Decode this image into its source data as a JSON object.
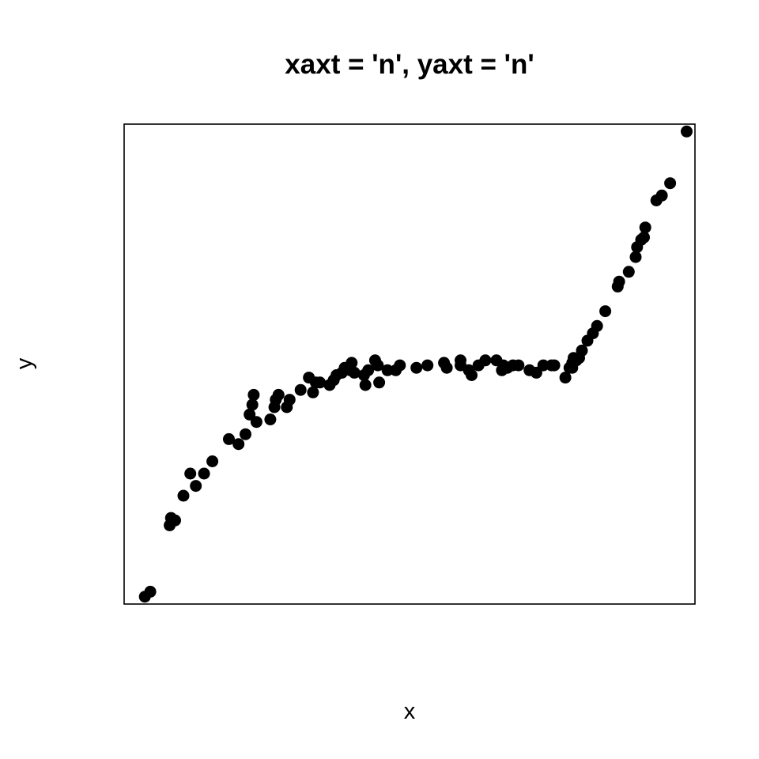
{
  "chart_data": {
    "type": "scatter",
    "title": "xaxt = 'n', yaxt = 'n'",
    "xlabel": "x",
    "ylabel": "y",
    "xlim": [
      0.04,
      2.11
    ],
    "ylim": [
      -0.33,
      1.62
    ],
    "x_ticks_shown": false,
    "y_ticks_shown": false,
    "grid": false,
    "point_color": "#000000",
    "series": [
      {
        "x": [
          0.115,
          0.135,
          0.205,
          0.21,
          0.225,
          0.255,
          0.28,
          0.3,
          0.33,
          0.36,
          0.42,
          0.455,
          0.48,
          0.495,
          0.505,
          0.51,
          0.52,
          0.57,
          0.585,
          0.59,
          0.6,
          0.63,
          0.64,
          0.68,
          0.71,
          0.725,
          0.735,
          0.75,
          0.785,
          0.8,
          0.81,
          0.83,
          0.84,
          0.86,
          0.865,
          0.875,
          0.91,
          0.915,
          0.925,
          0.95,
          0.96,
          0.965,
          0.995,
          1.025,
          1.04,
          1.1,
          1.14,
          1.2,
          1.21,
          1.26,
          1.26,
          1.29,
          1.3,
          1.325,
          1.35,
          1.39,
          1.41,
          1.415,
          1.43,
          1.45,
          1.47,
          1.51,
          1.535,
          1.56,
          1.59,
          1.6,
          1.64,
          1.655,
          1.665,
          1.665,
          1.67,
          1.68,
          1.69,
          1.7,
          1.72,
          1.74,
          1.755,
          1.785,
          1.83,
          1.835,
          1.87,
          1.895,
          1.9,
          1.915,
          1.925,
          1.93,
          1.97,
          1.99,
          2.02,
          2.08
        ],
        "y": [
          -0.3,
          -0.28,
          -0.01,
          0.02,
          0.01,
          0.11,
          0.2,
          0.15,
          0.2,
          0.25,
          0.34,
          0.32,
          0.36,
          0.44,
          0.48,
          0.52,
          0.41,
          0.42,
          0.47,
          0.5,
          0.52,
          0.47,
          0.5,
          0.54,
          0.59,
          0.53,
          0.57,
          0.57,
          0.56,
          0.58,
          0.6,
          0.61,
          0.63,
          0.62,
          0.65,
          0.61,
          0.6,
          0.56,
          0.62,
          0.66,
          0.64,
          0.57,
          0.62,
          0.62,
          0.64,
          0.63,
          0.64,
          0.65,
          0.63,
          0.64,
          0.66,
          0.62,
          0.6,
          0.64,
          0.66,
          0.66,
          0.62,
          0.64,
          0.63,
          0.64,
          0.64,
          0.62,
          0.61,
          0.64,
          0.64,
          0.64,
          0.59,
          0.63,
          0.63,
          0.65,
          0.67,
          0.66,
          0.67,
          0.7,
          0.74,
          0.77,
          0.8,
          0.86,
          0.96,
          0.98,
          1.02,
          1.08,
          1.12,
          1.15,
          1.16,
          1.2,
          1.31,
          1.33,
          1.38,
          1.59
        ]
      }
    ]
  }
}
